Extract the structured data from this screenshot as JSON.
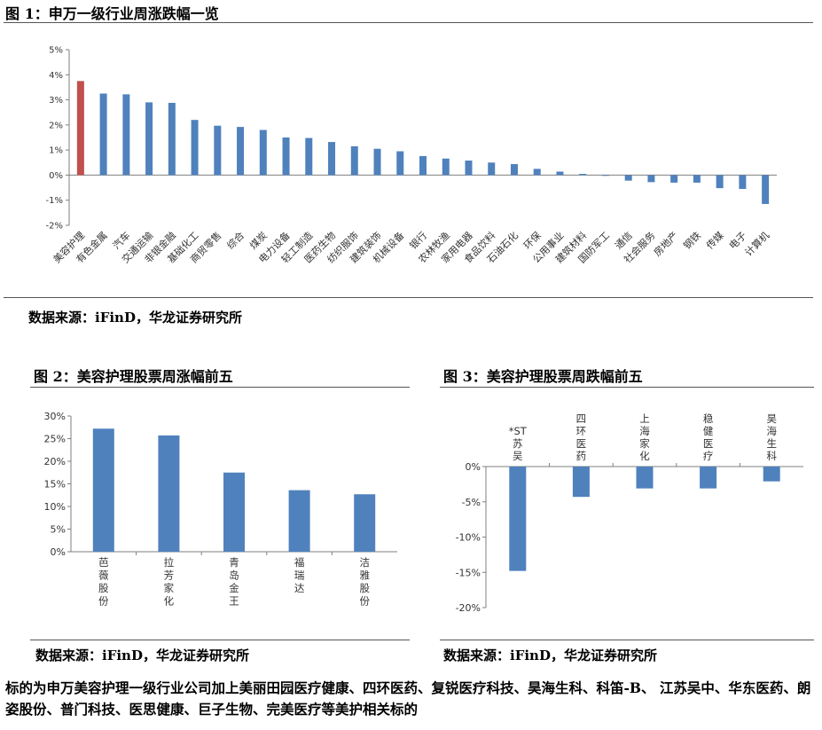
{
  "fig1": {
    "title": "图 1：申万一级行业周涨跌幅一览",
    "source": "数据来源：iFinD，华龙证券研究所"
  },
  "fig2": {
    "title": "图 2：美容护理股票周涨幅前五",
    "source": "数据来源：iFinD，华龙证券研究所"
  },
  "fig3": {
    "title": "图 3：美容护理股票周跌幅前五",
    "source": "数据来源：iFinD，华龙证券研究所"
  },
  "body_text": "标的为申万美容护理一级行业公司加上美丽田园医疗健康、四环医药、复锐医疗科技、昊海生科、科笛-B、 江苏吴中、华东医药、朗姿股份、普门科技、医思健康、巨子生物、完美医疗等美护相关标的",
  "colors": {
    "bar": "#4f81bd",
    "highlight": "#c0504d",
    "axis": "#7f7f7f"
  },
  "chart_data": [
    {
      "type": "bar",
      "title": "",
      "categories": [
        "美容护理",
        "有色金属",
        "汽车",
        "交通运输",
        "非银金融",
        "基础化工",
        "商贸零售",
        "综合",
        "煤炭",
        "电力设备",
        "轻工制造",
        "医药生物",
        "纺织服饰",
        "建筑装饰",
        "机械设备",
        "银行",
        "农林牧渔",
        "家用电器",
        "食品饮料",
        "石油石化",
        "环保",
        "公用事业",
        "建筑材料",
        "国防军工",
        "通信",
        "社会服务",
        "房地产",
        "钢铁",
        "传媒",
        "电子",
        "计算机"
      ],
      "values": [
        3.75,
        3.25,
        3.22,
        2.9,
        2.88,
        2.2,
        1.97,
        1.92,
        1.8,
        1.5,
        1.48,
        1.32,
        1.15,
        1.05,
        0.95,
        0.76,
        0.66,
        0.58,
        0.5,
        0.44,
        0.25,
        0.14,
        0.05,
        -0.03,
        -0.22,
        -0.28,
        -0.3,
        -0.3,
        -0.52,
        -0.55,
        -1.15
      ],
      "highlight": [
        "美容护理"
      ],
      "yticks": [
        "5%",
        "4%",
        "3%",
        "2%",
        "1%",
        "0%",
        "-1%",
        "-2%"
      ],
      "ylim": [
        -2,
        5
      ],
      "unit": "%"
    },
    {
      "type": "bar",
      "title": "",
      "categories": [
        "芭薇股份",
        "拉芳家化",
        "青岛金王",
        "福瑞达",
        "洁雅股份"
      ],
      "values": [
        27.2,
        25.7,
        17.5,
        13.6,
        12.7
      ],
      "yticks": [
        "30%",
        "25%",
        "20%",
        "15%",
        "10%",
        "5%",
        "0%"
      ],
      "ylim": [
        0,
        30
      ],
      "unit": "%"
    },
    {
      "type": "bar",
      "title": "",
      "categories": [
        "*ST苏吴",
        "四环医药",
        "上海家化",
        "稳健医疗",
        "昊海生科"
      ],
      "values": [
        -14.8,
        -4.3,
        -3.1,
        -3.1,
        -2.1
      ],
      "yticks": [
        "0%",
        "-5%",
        "-10%",
        "-15%",
        "-20%"
      ],
      "ylim": [
        -20,
        0
      ],
      "unit": "%"
    }
  ]
}
